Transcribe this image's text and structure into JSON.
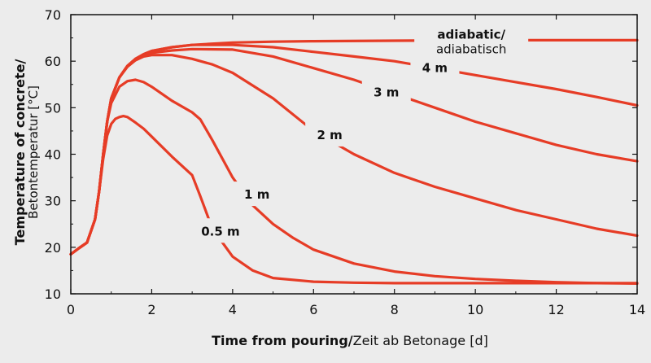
{
  "chart_data": {
    "type": "line",
    "title": "",
    "xlabel": {
      "bold": "Time from pouring/",
      "normal": "Zeit ab Betonage [d]"
    },
    "ylabel": {
      "bold": "Temperature of concrete/",
      "normal": "Betontemperatur [°C]"
    },
    "xlim": [
      0,
      14
    ],
    "ylim": [
      10,
      70
    ],
    "xticks": [
      "0",
      "2",
      "4",
      "6",
      "8",
      "10",
      "12",
      "14"
    ],
    "yticks": [
      "10",
      "20",
      "30",
      "40",
      "50",
      "60",
      "70"
    ],
    "grid": false,
    "line_color": "#e63c26",
    "series": [
      {
        "name": "adiabatic/ adiabatisch",
        "x": [
          0,
          0.2,
          0.4,
          0.6,
          0.7,
          0.8,
          0.9,
          1.0,
          1.2,
          1.4,
          1.6,
          1.8,
          2.0,
          2.5,
          3.0,
          4.0,
          5.0,
          6.0,
          8.0,
          10.0,
          12.0,
          14.0
        ],
        "y": [
          18.5,
          19.8,
          21.0,
          26.0,
          32.0,
          40.0,
          47.0,
          52.0,
          56.5,
          59.0,
          60.5,
          61.5,
          62.2,
          63.0,
          63.5,
          64.0,
          64.2,
          64.3,
          64.4,
          64.5,
          64.5,
          64.5
        ]
      },
      {
        "name": "4 m",
        "x": [
          0,
          0.2,
          0.4,
          0.6,
          0.7,
          0.8,
          0.9,
          1.0,
          1.2,
          1.4,
          1.6,
          1.8,
          2.0,
          2.5,
          3.0,
          4.0,
          5.0,
          6.0,
          7.0,
          8.0,
          9.0,
          10.0,
          11.0,
          12.0,
          13.0,
          14.0
        ],
        "y": [
          18.5,
          19.8,
          21.0,
          26.0,
          32.0,
          40.0,
          47.0,
          52.0,
          56.5,
          59.0,
          60.5,
          61.5,
          62.2,
          63.0,
          63.5,
          63.5,
          63.0,
          62.0,
          61.0,
          60.0,
          58.5,
          57.0,
          55.5,
          54.0,
          52.3,
          50.5
        ]
      },
      {
        "name": "3 m",
        "x": [
          0,
          0.2,
          0.4,
          0.6,
          0.7,
          0.8,
          0.9,
          1.0,
          1.2,
          1.4,
          1.6,
          1.8,
          2.0,
          2.5,
          3.0,
          4.0,
          5.0,
          6.0,
          7.0,
          8.0,
          9.0,
          10.0,
          11.0,
          12.0,
          13.0,
          14.0
        ],
        "y": [
          18.5,
          19.8,
          21.0,
          26.0,
          32.0,
          40.0,
          47.0,
          52.0,
          56.5,
          59.0,
          60.5,
          61.3,
          61.8,
          62.3,
          62.6,
          62.5,
          61.0,
          58.5,
          56.0,
          53.0,
          50.0,
          47.0,
          44.5,
          42.0,
          40.0,
          38.5
        ]
      },
      {
        "name": "2 m",
        "x": [
          0,
          0.2,
          0.4,
          0.6,
          0.7,
          0.8,
          0.9,
          1.0,
          1.2,
          1.4,
          1.6,
          1.8,
          2.0,
          2.5,
          3.0,
          3.5,
          4.0,
          5.0,
          6.0,
          7.0,
          8.0,
          9.0,
          10.0,
          11.0,
          12.0,
          13.0,
          14.0
        ],
        "y": [
          18.5,
          19.8,
          21.0,
          26.0,
          32.0,
          40.0,
          47.0,
          52.0,
          56.5,
          58.8,
          60.2,
          61.0,
          61.3,
          61.3,
          60.5,
          59.3,
          57.5,
          52.0,
          45.0,
          40.0,
          36.0,
          33.0,
          30.5,
          28.0,
          26.0,
          24.0,
          22.5
        ]
      },
      {
        "name": "1 m",
        "x": [
          0,
          0.2,
          0.4,
          0.6,
          0.7,
          0.8,
          0.9,
          1.0,
          1.2,
          1.4,
          1.6,
          1.8,
          2.0,
          2.5,
          3.0,
          3.2,
          3.5,
          4.0,
          4.5,
          5.0,
          5.5,
          6.0,
          7.0,
          8.0,
          9.0,
          10.0,
          11.0,
          12.0,
          13.0,
          14.0
        ],
        "y": [
          18.5,
          19.8,
          21.0,
          26.0,
          32.0,
          40.0,
          47.0,
          51.0,
          54.5,
          55.7,
          56.0,
          55.5,
          54.5,
          51.5,
          49.0,
          47.5,
          43.0,
          35.0,
          29.0,
          25.0,
          22.0,
          19.5,
          16.5,
          14.8,
          13.8,
          13.2,
          12.8,
          12.5,
          12.3,
          12.2
        ]
      },
      {
        "name": "0.5 m",
        "x": [
          0,
          0.2,
          0.4,
          0.6,
          0.7,
          0.8,
          0.9,
          1.0,
          1.1,
          1.2,
          1.3,
          1.4,
          1.6,
          1.8,
          2.0,
          2.5,
          3.0,
          3.2,
          3.5,
          4.0,
          4.5,
          5.0,
          6.0,
          7.0,
          8.0,
          9.0,
          10.0,
          11.0,
          12.0,
          13.0,
          14.0
        ],
        "y": [
          18.5,
          19.8,
          21.0,
          26.0,
          32.0,
          39.0,
          44.0,
          46.5,
          47.6,
          48.0,
          48.2,
          48.0,
          46.8,
          45.5,
          43.8,
          39.5,
          35.5,
          31.0,
          24.0,
          18.0,
          15.0,
          13.4,
          12.6,
          12.4,
          12.3,
          12.3,
          12.3,
          12.3,
          12.3,
          12.3,
          12.3
        ]
      }
    ],
    "annotations": [
      {
        "line1": "adiabatic/",
        "line2": "adiabatisch",
        "x": 9.9,
        "y": 64.5
      },
      {
        "line1": "4 m",
        "x": 9.0,
        "y": 58.7
      },
      {
        "line1": "3 m",
        "x": 7.8,
        "y": 53.5
      },
      {
        "line1": "2 m",
        "x": 6.4,
        "y": 44.3
      },
      {
        "line1": "1 m",
        "x": 4.6,
        "y": 31.5
      },
      {
        "line1": "0.5 m",
        "x": 3.7,
        "y": 23.6
      }
    ]
  }
}
